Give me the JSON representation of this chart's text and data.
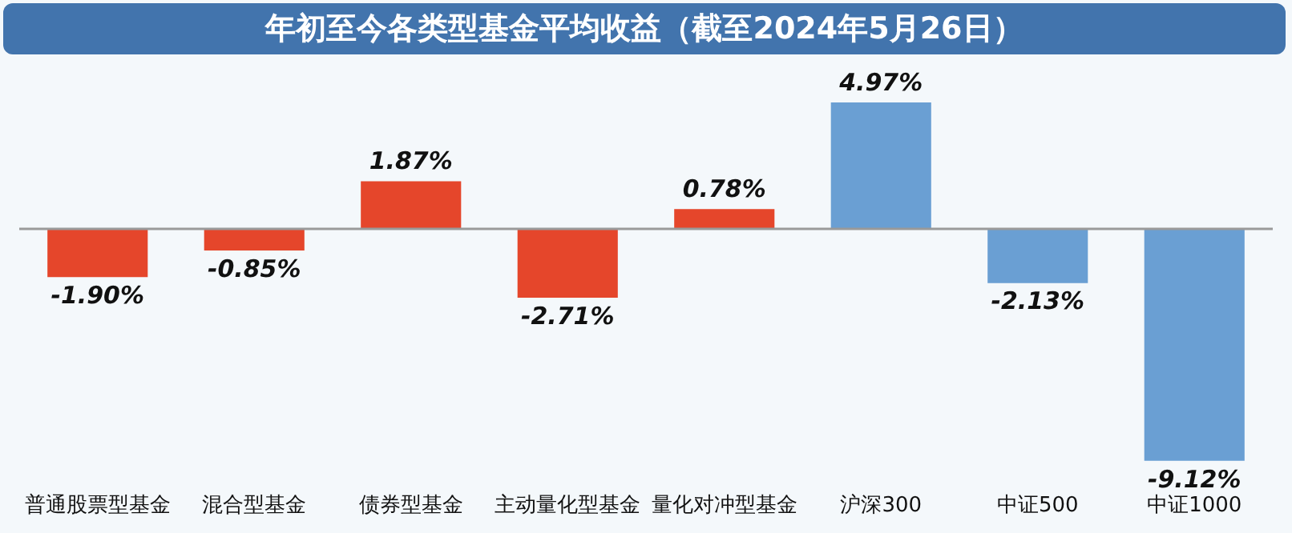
{
  "chart_data": {
    "type": "bar",
    "title": "年初至今各类型基金平均收益（截至2024年5月26日）",
    "categories": [
      "普通股票型基金",
      "混合型基金",
      "债券型基金",
      "主动量化型基金",
      "量化对冲型基金",
      "沪深300",
      "中证500",
      "中证1000"
    ],
    "values": [
      -1.9,
      -0.85,
      1.87,
      -2.71,
      0.78,
      4.97,
      -2.13,
      -9.12
    ],
    "colors": [
      "#e5462b",
      "#e5462b",
      "#e5462b",
      "#e5462b",
      "#e5462b",
      "#6a9fd3",
      "#6a9fd3",
      "#6a9fd3"
    ],
    "value_labels": [
      "-1.90%",
      "-0.85%",
      "1.87%",
      "-2.71%",
      "0.78%",
      "4.97%",
      "-2.13%",
      "-9.12%"
    ],
    "grid": false,
    "legend": false
  }
}
